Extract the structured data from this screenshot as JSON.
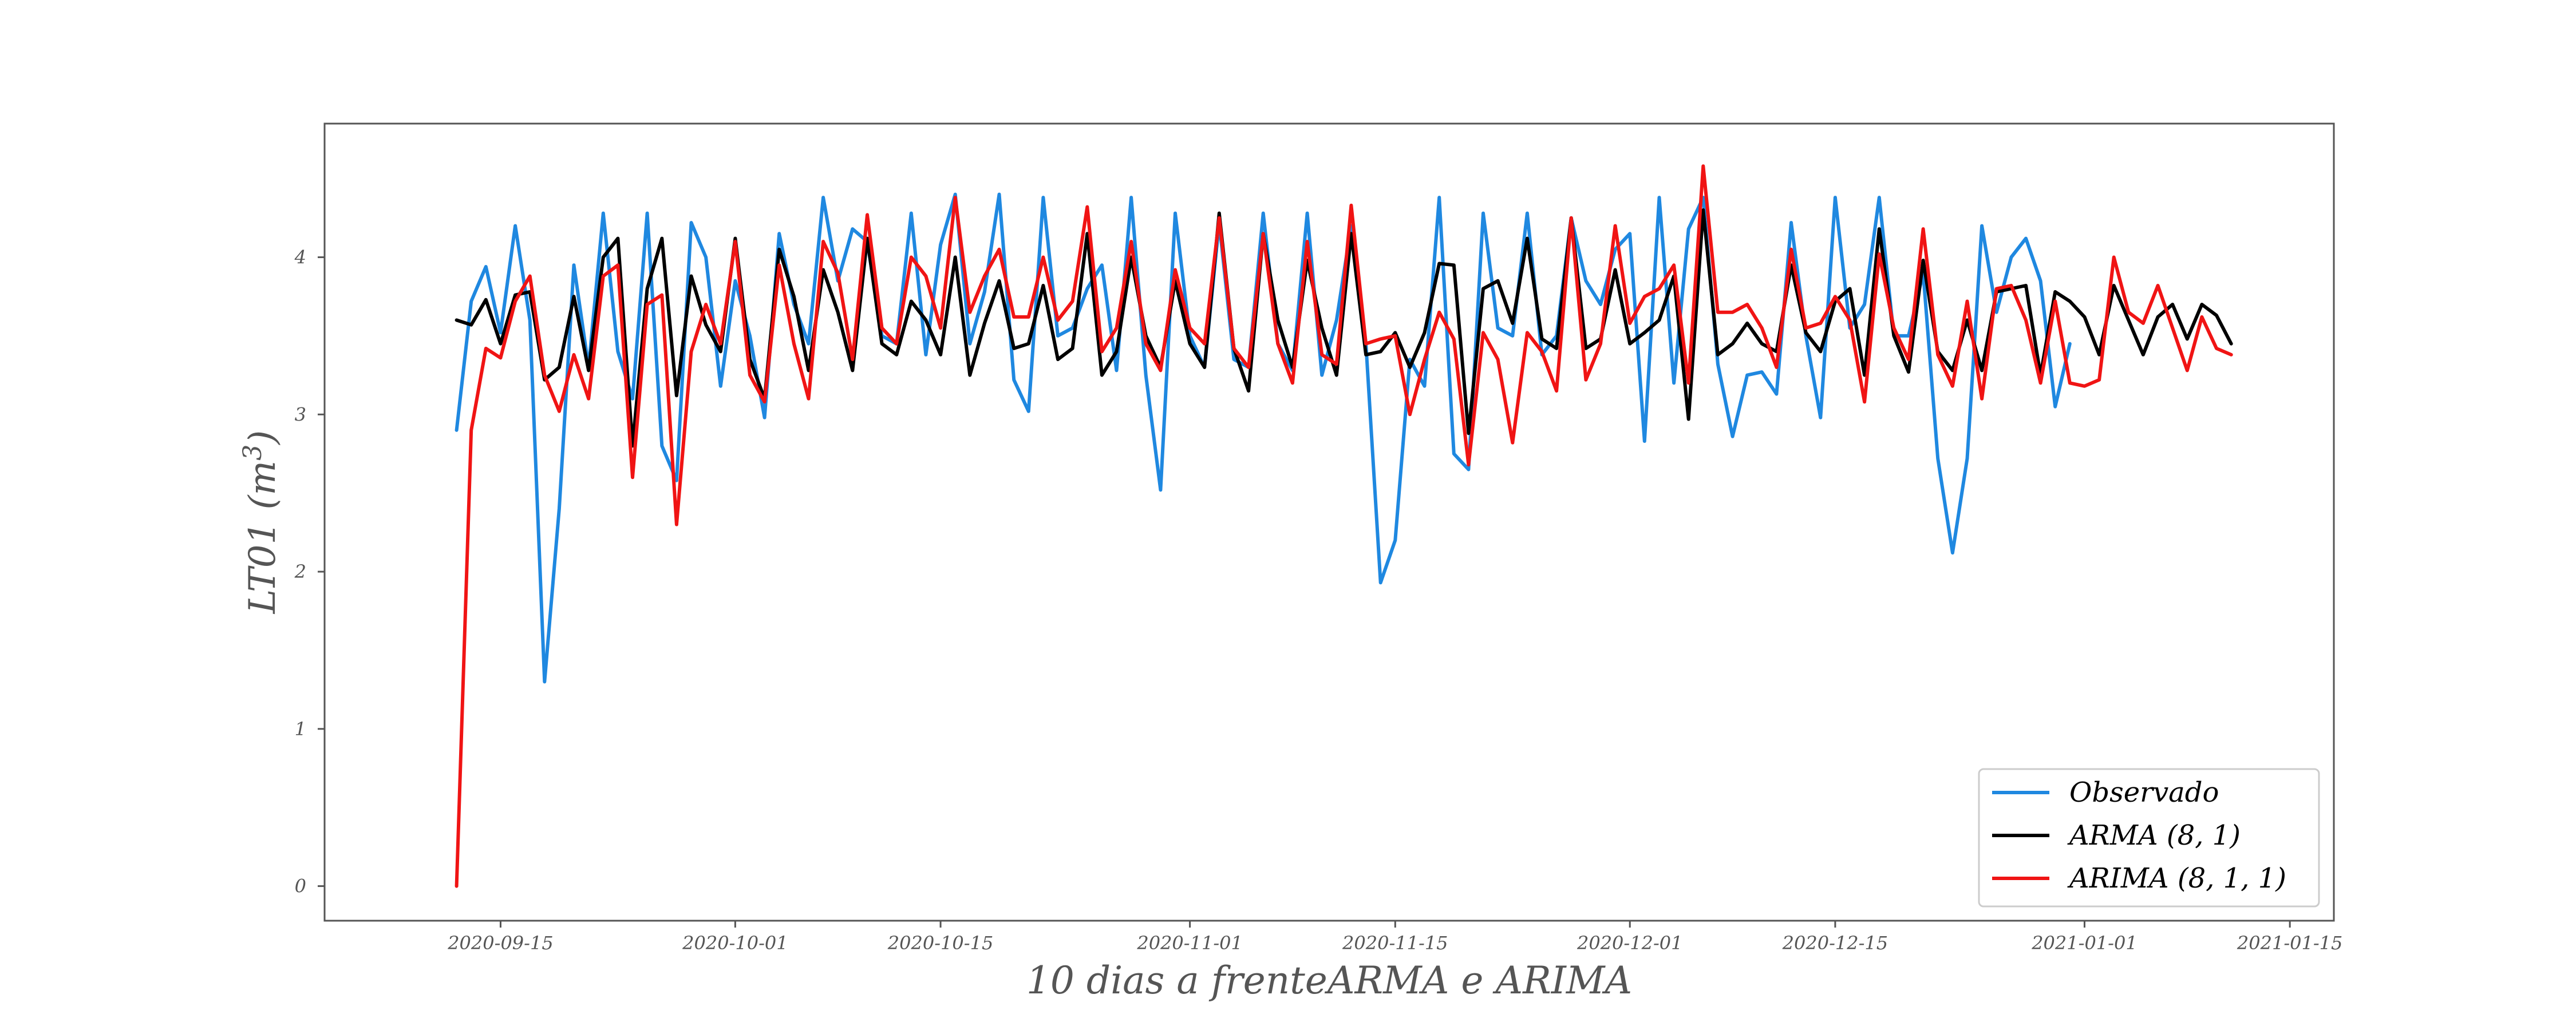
{
  "chart_data": {
    "type": "line",
    "title": "",
    "xlabel": "10 dias a frenteARMA e ARIMA",
    "ylabel": "LT01 (m³)",
    "ylabel_base": "LT01 (m",
    "ylabel_sup": "3",
    "ylabel_close": ")",
    "x_type": "date",
    "xlim": [
      "2020-09-03",
      "2021-01-18"
    ],
    "ylim": [
      -0.22,
      4.85
    ],
    "x_ticks": [
      "2020-09-15",
      "2020-10-01",
      "2020-10-15",
      "2020-11-01",
      "2020-11-15",
      "2020-12-01",
      "2020-12-15",
      "2021-01-01",
      "2021-01-15"
    ],
    "y_ticks": [
      0,
      1,
      2,
      3,
      4
    ],
    "y_tick_labels": [
      "0",
      "1",
      "2",
      "3",
      "4"
    ],
    "grid": false,
    "legend_position": "lower-right",
    "series": [
      {
        "name": "Observado",
        "color": "#1f88e0",
        "start_date": "2020-09-12",
        "values": [
          2.9,
          3.72,
          3.94,
          3.52,
          4.2,
          3.6,
          1.3,
          2.4,
          3.95,
          3.3,
          4.28,
          3.4,
          3.1,
          4.28,
          2.8,
          2.58,
          4.22,
          4.0,
          3.18,
          3.85,
          3.5,
          2.98,
          4.15,
          3.7,
          3.45,
          4.38,
          3.85,
          4.18,
          4.1,
          3.5,
          3.45,
          4.28,
          3.38,
          4.08,
          4.4,
          3.45,
          3.78,
          4.4,
          3.22,
          3.02,
          4.38,
          3.5,
          3.55,
          3.8,
          3.95,
          3.28,
          4.38,
          3.25,
          2.52,
          4.28,
          3.5,
          3.3,
          4.22,
          3.35,
          3.3,
          4.28,
          3.45,
          3.28,
          4.28,
          3.25,
          3.6,
          4.2,
          3.45,
          1.93,
          2.2,
          3.35,
          3.18,
          4.38,
          2.75,
          2.65,
          4.28,
          3.55,
          3.5,
          4.28,
          3.38,
          3.5,
          4.25,
          3.85,
          3.7,
          4.05,
          4.15,
          2.83,
          4.38,
          3.2,
          4.18,
          4.38,
          3.32,
          2.86,
          3.25,
          3.27,
          3.13,
          4.22,
          3.5,
          2.98,
          4.38,
          3.55,
          3.7,
          4.38,
          3.5,
          3.5,
          3.9,
          2.72,
          2.12,
          2.72,
          4.2,
          3.65,
          4.0,
          4.12,
          3.85,
          3.05,
          3.45
        ]
      },
      {
        "name": "ARMA (8, 1)",
        "color": "#000000",
        "start_date": "2020-09-12",
        "values": [
          3.6,
          3.57,
          3.73,
          3.45,
          3.76,
          3.78,
          3.22,
          3.3,
          3.75,
          3.28,
          4.0,
          4.12,
          2.8,
          3.8,
          4.12,
          3.12,
          3.88,
          3.57,
          3.4,
          4.12,
          3.35,
          3.1,
          4.05,
          3.75,
          3.28,
          3.92,
          3.65,
          3.28,
          4.12,
          3.45,
          3.38,
          3.72,
          3.6,
          3.38,
          4.0,
          3.25,
          3.58,
          3.85,
          3.42,
          3.45,
          3.82,
          3.35,
          3.42,
          4.15,
          3.25,
          3.4,
          4.0,
          3.5,
          3.3,
          3.85,
          3.45,
          3.3,
          4.28,
          3.42,
          3.15,
          4.15,
          3.6,
          3.3,
          3.98,
          3.55,
          3.25,
          4.15,
          3.38,
          3.4,
          3.52,
          3.3,
          3.52,
          3.96,
          3.95,
          2.88,
          3.8,
          3.85,
          3.58,
          4.12,
          3.48,
          3.42,
          4.25,
          3.42,
          3.48,
          3.92,
          3.45,
          3.52,
          3.6,
          3.88,
          2.97,
          4.3,
          3.38,
          3.45,
          3.58,
          3.45,
          3.4,
          3.95,
          3.52,
          3.4,
          3.72,
          3.8,
          3.25,
          4.18,
          3.5,
          3.27,
          3.98,
          3.4,
          3.28,
          3.6,
          3.28,
          3.78,
          3.8,
          3.82,
          3.25,
          3.78,
          3.72,
          3.62,
          3.38,
          3.82,
          3.6,
          3.38,
          3.62,
          3.7,
          3.48,
          3.7,
          3.63,
          3.45
        ]
      },
      {
        "name": "ARIMA (8, 1, 1)",
        "color": "#f01414",
        "start_date": "2020-09-12",
        "values": [
          0.0,
          2.9,
          3.42,
          3.36,
          3.72,
          3.88,
          3.25,
          3.02,
          3.38,
          3.1,
          3.88,
          3.95,
          2.6,
          3.7,
          3.76,
          2.3,
          3.4,
          3.7,
          3.45,
          4.1,
          3.25,
          3.08,
          3.95,
          3.45,
          3.1,
          4.1,
          3.9,
          3.35,
          4.27,
          3.55,
          3.45,
          4.0,
          3.88,
          3.55,
          4.38,
          3.65,
          3.88,
          4.05,
          3.62,
          3.62,
          4.0,
          3.6,
          3.72,
          4.32,
          3.4,
          3.55,
          4.1,
          3.45,
          3.28,
          3.92,
          3.55,
          3.45,
          4.25,
          3.42,
          3.3,
          4.15,
          3.45,
          3.2,
          4.1,
          3.38,
          3.32,
          4.33,
          3.45,
          3.48,
          3.5,
          3.0,
          3.35,
          3.65,
          3.48,
          2.68,
          3.52,
          3.35,
          2.82,
          3.52,
          3.4,
          3.15,
          4.25,
          3.22,
          3.45,
          4.2,
          3.58,
          3.75,
          3.8,
          3.95,
          3.2,
          4.58,
          3.65,
          3.65,
          3.7,
          3.55,
          3.3,
          4.05,
          3.55,
          3.58,
          3.75,
          3.6,
          3.08,
          4.02,
          3.55,
          3.35,
          4.18,
          3.38,
          3.18,
          3.72,
          3.1,
          3.8,
          3.82,
          3.6,
          3.2,
          3.72,
          3.2,
          3.18,
          3.22,
          4.0,
          3.65,
          3.58,
          3.82,
          3.55,
          3.28,
          3.62,
          3.42,
          3.38
        ]
      }
    ]
  }
}
